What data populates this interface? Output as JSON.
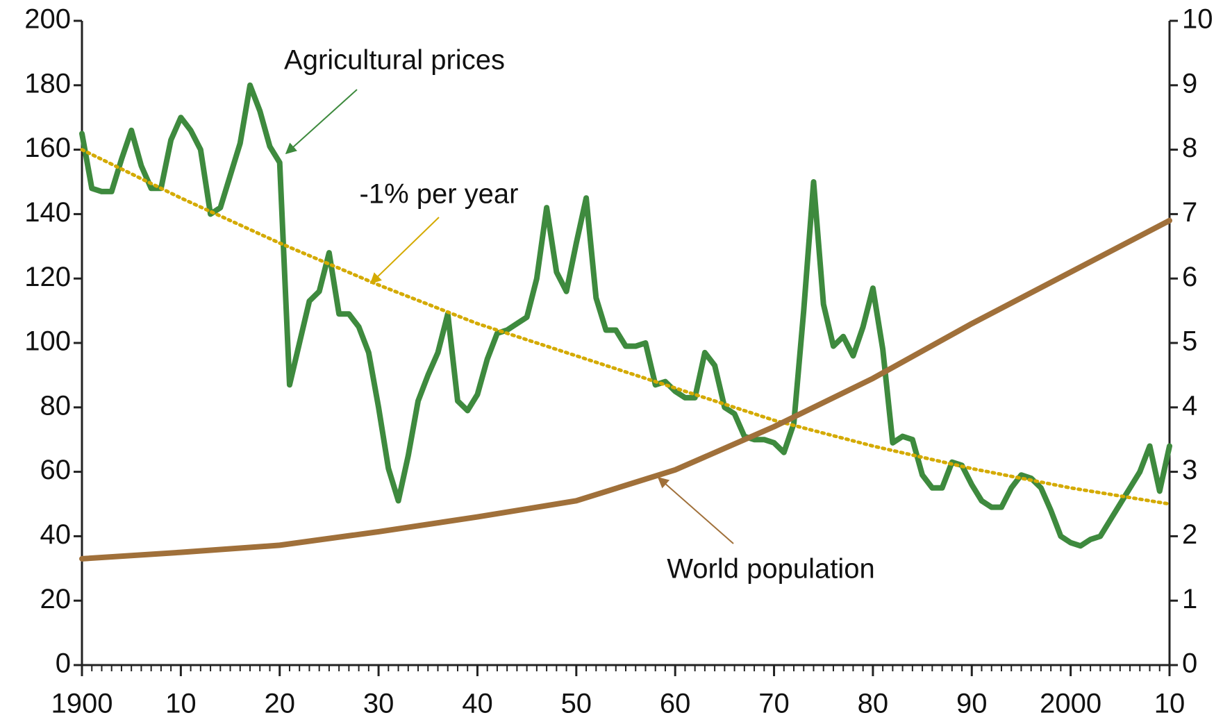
{
  "chart_data": {
    "type": "line",
    "x": [
      1900,
      1901,
      1902,
      1903,
      1904,
      1905,
      1906,
      1907,
      1908,
      1909,
      1910,
      1911,
      1912,
      1913,
      1914,
      1915,
      1916,
      1917,
      1918,
      1919,
      1920,
      1921,
      1922,
      1923,
      1924,
      1925,
      1926,
      1927,
      1928,
      1929,
      1930,
      1931,
      1932,
      1933,
      1934,
      1935,
      1936,
      1937,
      1938,
      1939,
      1940,
      1941,
      1942,
      1943,
      1944,
      1945,
      1946,
      1947,
      1948,
      1949,
      1950,
      1951,
      1952,
      1953,
      1954,
      1955,
      1956,
      1957,
      1958,
      1959,
      1960,
      1961,
      1962,
      1963,
      1964,
      1965,
      1966,
      1967,
      1968,
      1969,
      1970,
      1971,
      1972,
      1973,
      1974,
      1975,
      1976,
      1977,
      1978,
      1979,
      1980,
      1981,
      1982,
      1983,
      1984,
      1985,
      1986,
      1987,
      1988,
      1989,
      1990,
      1991,
      1992,
      1993,
      1994,
      1995,
      1996,
      1997,
      1998,
      1999,
      2000,
      2001,
      2002,
      2003,
      2004,
      2005,
      2006,
      2007,
      2008,
      2009,
      2010
    ],
    "series": [
      {
        "name": "Agricultural prices",
        "color": "#3e8a3e",
        "values": [
          165,
          148,
          147,
          147,
          157,
          166,
          155,
          148,
          148,
          163,
          170,
          166,
          160,
          140,
          142,
          152,
          162,
          180,
          172,
          161,
          156,
          87,
          100,
          113,
          116,
          128,
          109,
          109,
          105,
          97,
          80,
          61,
          51,
          65,
          82,
          90,
          97,
          109,
          82,
          79,
          84,
          95,
          103,
          104,
          106,
          108,
          120,
          142,
          122,
          116,
          131,
          145,
          114,
          104,
          104,
          99,
          99,
          100,
          87,
          88,
          85,
          83,
          83,
          97,
          93,
          80,
          78,
          71,
          70,
          70,
          69,
          66,
          75,
          110,
          150,
          112,
          99,
          102,
          96,
          105,
          117,
          98,
          69,
          71,
          70,
          59,
          55,
          55,
          63,
          62,
          56,
          51,
          49,
          49,
          55,
          59,
          58,
          55,
          48,
          40,
          38,
          37,
          39,
          40,
          45,
          50,
          55,
          60,
          68,
          54,
          68
        ]
      },
      {
        "name": "-1% per year",
        "color": "#d4aa00",
        "x": [
          1900,
          1910,
          1920,
          1930,
          1940,
          1950,
          1960,
          1970,
          1980,
          1990,
          2000,
          2010
        ],
        "values": [
          160,
          145,
          131,
          118,
          106,
          96,
          86,
          76,
          68,
          61,
          55,
          50
        ]
      },
      {
        "name": "World population",
        "color": "#a0703a",
        "axis": "y2",
        "x": [
          1900,
          1910,
          1920,
          1930,
          1940,
          1950,
          1960,
          1970,
          1980,
          1990,
          2000,
          2010
        ],
        "values": [
          1.65,
          1.75,
          1.86,
          2.07,
          2.3,
          2.55,
          3.03,
          3.7,
          4.45,
          5.3,
          6.1,
          6.9
        ]
      }
    ],
    "xlim": [
      1900,
      2010
    ],
    "xticks": [
      {
        "value": 1900,
        "label": "1900"
      },
      {
        "value": 1910,
        "label": "10"
      },
      {
        "value": 1920,
        "label": "20"
      },
      {
        "value": 1930,
        "label": "30"
      },
      {
        "value": 1940,
        "label": "40"
      },
      {
        "value": 1950,
        "label": "50"
      },
      {
        "value": 1960,
        "label": "60"
      },
      {
        "value": 1970,
        "label": "70"
      },
      {
        "value": 1980,
        "label": "80"
      },
      {
        "value": 1990,
        "label": "90"
      },
      {
        "value": 2000,
        "label": "2000"
      },
      {
        "value": 2010,
        "label": "10"
      }
    ],
    "ylim": [
      0,
      200
    ],
    "yticks": [
      0,
      20,
      40,
      60,
      80,
      100,
      120,
      140,
      160,
      180,
      200
    ],
    "y2lim": [
      0,
      10
    ],
    "y2ticks": [
      0,
      1,
      2,
      3,
      4,
      5,
      6,
      7,
      8,
      9,
      10
    ]
  }
}
